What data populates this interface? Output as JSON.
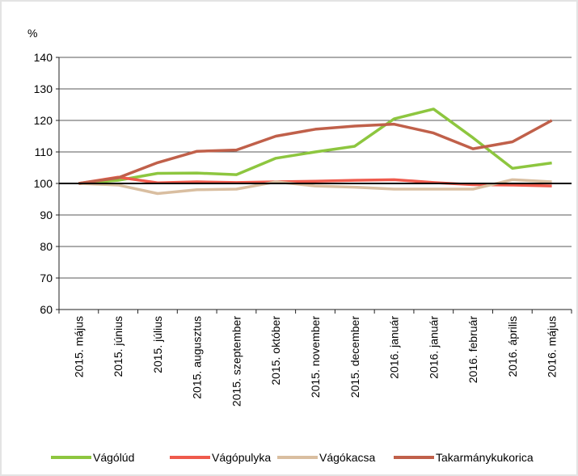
{
  "chart_data": {
    "type": "line",
    "y_unit": "%",
    "categories": [
      "2015. május",
      "2015. június",
      "2015. július",
      "2015. augusztus",
      "2015. szeptember",
      "2015. október",
      "2015. november",
      "2015. december",
      "2016. január",
      "2016. január",
      "2016. február",
      "2016. április",
      "2016. május"
    ],
    "series": [
      {
        "name": "Vágólúd",
        "color": "#8dc63f",
        "values": [
          100,
          101,
          103.2,
          103.3,
          102.8,
          108,
          110,
          111.8,
          120.5,
          123.6,
          114.5,
          104.8,
          106.5
        ]
      },
      {
        "name": "Vágópulyka",
        "color": "#ef5a4c",
        "values": [
          100,
          102,
          100.2,
          100.5,
          100.3,
          100.5,
          100.7,
          101,
          101.2,
          100.3,
          99.6,
          99.5,
          99.2
        ]
      },
      {
        "name": "Vágókacsa",
        "color": "#d9bea0",
        "values": [
          100,
          99.5,
          96.8,
          98,
          98.2,
          100.5,
          99.2,
          98.8,
          98.2,
          98.2,
          98.2,
          101.2,
          100.5
        ]
      },
      {
        "name": "Takarmánykukorica",
        "color": "#c0604a",
        "values": [
          100,
          101.8,
          106.6,
          110.2,
          110.6,
          115,
          117.2,
          118.2,
          118.8,
          116,
          111,
          113.2,
          120
        ]
      }
    ],
    "reference_line": 100,
    "ylim": [
      60,
      140
    ],
    "yticks": [
      60,
      70,
      80,
      90,
      100,
      110,
      120,
      130,
      140
    ],
    "grid": true,
    "legend": "bottom"
  }
}
